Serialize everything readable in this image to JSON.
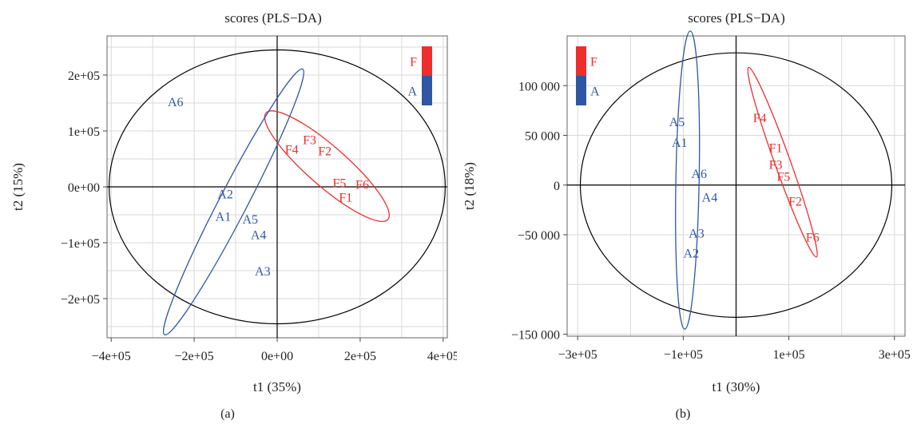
{
  "chart_data": [
    {
      "type": "scatter",
      "panel_label": "(a)",
      "title": "scores (PLS−DA)",
      "xlabel": "t1 (35%)",
      "ylabel": "t2 (15%)",
      "xlim": [
        -410000,
        410000
      ],
      "ylim": [
        -270000,
        270000
      ],
      "xticks": [
        {
          "value": -400000,
          "label": "−4e+05"
        },
        {
          "value": -200000,
          "label": "−2e+05"
        },
        {
          "value": 0,
          "label": "0e+00"
        },
        {
          "value": 200000,
          "label": "2e+05"
        },
        {
          "value": 400000,
          "label": "4e+05"
        }
      ],
      "yticks": [
        {
          "value": 200000,
          "label": "2e+05"
        },
        {
          "value": 100000,
          "label": "1e+05"
        },
        {
          "value": 0,
          "label": "0e+00"
        },
        {
          "value": -100000,
          "label": "−1e+05"
        },
        {
          "value": -200000,
          "label": "−2e+05"
        }
      ],
      "grid": true,
      "legend_position": "top-right",
      "legend": [
        {
          "label": "F",
          "color": "#ee2d2d"
        },
        {
          "label": "A",
          "color": "#2f56a3"
        }
      ],
      "hotelling_ellipse": {
        "rx": 405000,
        "ry": 245000,
        "color": "#000000"
      },
      "series": [
        {
          "name": "F",
          "color": "#ee2d2d",
          "points": [
            {
              "label": "F1",
              "x": 165000,
              "y": -18000
            },
            {
              "label": "F2",
              "x": 115000,
              "y": 65000
            },
            {
              "label": "F3",
              "x": 78000,
              "y": 85000
            },
            {
              "label": "F4",
              "x": 35000,
              "y": 68000
            },
            {
              "label": "F5",
              "x": 150000,
              "y": 8000
            },
            {
              "label": "F6",
              "x": 205000,
              "y": 5000
            }
          ],
          "ellipse": {
            "cx": 120000,
            "cy": 37000,
            "rx": 175000,
            "ry": 38000,
            "angle": -33
          }
        },
        {
          "name": "A",
          "color": "#2f56a3",
          "points": [
            {
              "label": "A1",
              "x": -130000,
              "y": -52000
            },
            {
              "label": "A2",
              "x": -125000,
              "y": -12000
            },
            {
              "label": "A3",
              "x": -35000,
              "y": -150000
            },
            {
              "label": "A4",
              "x": -45000,
              "y": -85000
            },
            {
              "label": "A5",
              "x": -65000,
              "y": -57000
            },
            {
              "label": "A6",
              "x": -245000,
              "y": 153000
            }
          ],
          "ellipse": {
            "cx": -105000,
            "cy": -27000,
            "rx": 290000,
            "ry": 30000,
            "angle": 55
          }
        }
      ]
    },
    {
      "type": "scatter",
      "panel_label": "(b)",
      "title": "scores (PLS−DA)",
      "xlabel": "t1 (30%)",
      "ylabel": "t2 (18%)",
      "xlim": [
        -320000,
        320000
      ],
      "ylim": [
        -152000,
        150000
      ],
      "xticks": [
        {
          "value": -300000,
          "label": "−3e+05"
        },
        {
          "value": -100000,
          "label": "−1e+05"
        },
        {
          "value": 100000,
          "label": "1e+05"
        },
        {
          "value": 300000,
          "label": "3e+05"
        }
      ],
      "yticks": [
        {
          "value": 100000,
          "label": "100 000"
        },
        {
          "value": 50000,
          "label": "50 000"
        },
        {
          "value": 0,
          "label": "0"
        },
        {
          "value": -50000,
          "label": "−50 000"
        },
        {
          "value": -150000,
          "label": "−150 000"
        }
      ],
      "grid": true,
      "legend_position": "top-left",
      "legend": [
        {
          "label": "F",
          "color": "#ee2d2d"
        },
        {
          "label": "A",
          "color": "#2f56a3"
        }
      ],
      "hotelling_ellipse": {
        "rx": 295000,
        "ry": 133000,
        "color": "#000000"
      },
      "series": [
        {
          "name": "F",
          "color": "#ee2d2d",
          "points": [
            {
              "label": "F1",
              "x": 75000,
              "y": 38000
            },
            {
              "label": "F2",
              "x": 112000,
              "y": -16000
            },
            {
              "label": "F3",
              "x": 75000,
              "y": 21000
            },
            {
              "label": "F4",
              "x": 45000,
              "y": 68000
            },
            {
              "label": "F5",
              "x": 90000,
              "y": 9000
            },
            {
              "label": "F6",
              "x": 145000,
              "y": -52000
            }
          ],
          "ellipse": {
            "cx": 88000,
            "cy": 23000,
            "rx": 115000,
            "ry": 11000,
            "angle": -56
          }
        },
        {
          "name": "A",
          "color": "#2f56a3",
          "points": [
            {
              "label": "A1",
              "x": -107000,
              "y": 43000
            },
            {
              "label": "A2",
              "x": -85000,
              "y": -68000
            },
            {
              "label": "A3",
              "x": -75000,
              "y": -48000
            },
            {
              "label": "A4",
              "x": -50000,
              "y": -12000
            },
            {
              "label": "A5",
              "x": -112000,
              "y": 64000
            },
            {
              "label": "A6",
              "x": -70000,
              "y": 12000
            }
          ],
          "ellipse": {
            "cx": -92000,
            "cy": 5000,
            "rx": 150000,
            "ry": 22000,
            "angle": 88
          }
        }
      ]
    }
  ]
}
